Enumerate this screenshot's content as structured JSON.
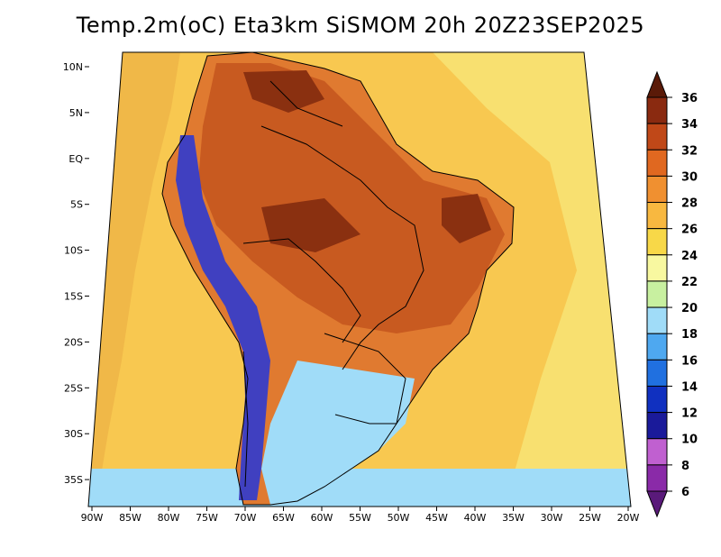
{
  "title": "Temp.2m(oC) Eta3km SiSMOM 20h 20Z23SEP2025",
  "lat_labels": [
    "10N",
    "5N",
    "EQ",
    "5S",
    "10S",
    "15S",
    "20S",
    "25S",
    "30S",
    "35S"
  ],
  "lon_labels": [
    "90W",
    "85W",
    "80W",
    "75W",
    "70W",
    "65W",
    "60W",
    "55W",
    "50W",
    "45W",
    "40W",
    "35W",
    "30W",
    "25W",
    "20W"
  ],
  "colorbar": {
    "levels": [
      "6",
      "8",
      "10",
      "12",
      "14",
      "16",
      "18",
      "20",
      "22",
      "24",
      "26",
      "28",
      "30",
      "32",
      "34",
      "36"
    ],
    "colors": [
      "#5a1a7a",
      "#8a2aa8",
      "#c060d0",
      "#1a1a9a",
      "#1030c0",
      "#2070e0",
      "#4ea8f0",
      "#a0dcf8",
      "#c8f0a0",
      "#f8f8a0",
      "#f8d848",
      "#f8b840",
      "#f09030",
      "#e06820",
      "#c04818",
      "#8a2a10",
      "#5a1a08"
    ]
  },
  "map_colors": {
    "ocean_warm": "#f8c850",
    "ocean_mid": "#f0b848",
    "ocean_cool": "#f8e070",
    "land_hot": "#e07a30",
    "land_hotter": "#c85a20",
    "land_hottest": "#8a3010",
    "andes_cold": "#4040c0",
    "south_cool": "#a0dcf8"
  }
}
